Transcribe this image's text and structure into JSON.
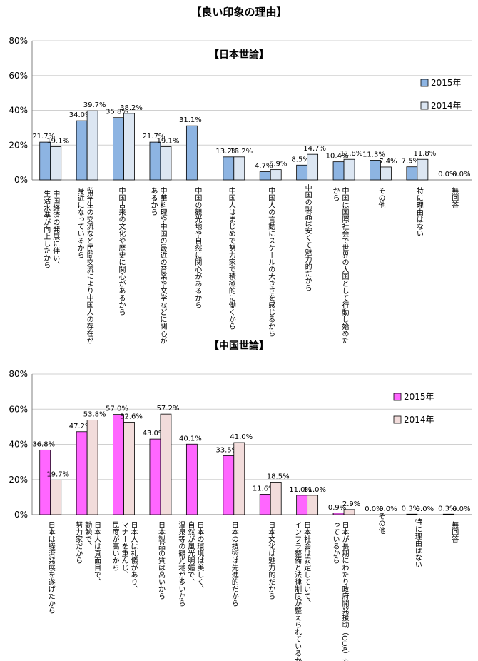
{
  "page_title": "【良い印象の理由】",
  "chart_data": [
    {
      "type": "bar",
      "title": "【日本世論】",
      "ylim": [
        0,
        80
      ],
      "yticks": [
        "0%",
        "20%",
        "40%",
        "60%",
        "80%"
      ],
      "grid": true,
      "legend_position": "right",
      "categories": [
        "中国経済の発展に伴い、生活水準が向上したから",
        "留学生の交流など民間交流により中国人の存在が身近になっているから",
        "中国古来の文化や歴史に関心があるから",
        "中華料理や中国の最近の音楽や文学などに関心があるから",
        "中国の観光地や自然に関心があるから",
        "中国人はまじめで努力家で積極的に働くから",
        "中国人の言動にスケールの大きさを感じるから",
        "中国の製品は安くて魅力的だから",
        "中国は国際社会で世界の大国として行動し始めたから",
        "その他",
        "特に理由はない",
        "無回答"
      ],
      "series": [
        {
          "name": "2015年",
          "color": "#8DB4E2",
          "values": [
            21.7,
            34.0,
            35.8,
            21.7,
            31.1,
            13.2,
            4.7,
            8.5,
            10.4,
            11.3,
            7.5,
            0.0
          ],
          "labels": [
            "21.7%",
            "34.0%",
            "35.8%",
            "21.7%",
            "31.1%",
            "13.2%",
            "4.7%",
            "8.5%",
            "10.4%",
            "11.3%",
            "7.5%",
            "0.0%"
          ]
        },
        {
          "name": "2014年",
          "color": "#DCE6F2",
          "values": [
            19.1,
            39.7,
            38.2,
            19.1,
            null,
            13.2,
            5.9,
            14.7,
            11.8,
            7.4,
            11.8,
            0.0
          ],
          "labels": [
            "19.1%",
            "39.7%",
            "38.2%",
            "19.1%",
            "",
            "13.2%",
            "5.9%",
            "14.7%",
            "11.8%",
            "7.4%",
            "11.8%",
            "0.0%"
          ]
        }
      ]
    },
    {
      "type": "bar",
      "title": "【中国世論】",
      "ylim": [
        0,
        80
      ],
      "yticks": [
        "0%",
        "20%",
        "40%",
        "60%",
        "80%"
      ],
      "grid": true,
      "legend_position": "right",
      "categories": [
        "日本は経済発展を遂げたから",
        "日本人は真面目で、勤勉で、努力家だから",
        "日本人は礼儀があり、マナーを重んじ、民度が高いから",
        "日本製品の質は高いから",
        "日本の環境は美しく、自然が風光明媚で、温泉等の観光地が多いから",
        "日本の技術は先進的だから",
        "日本文化は魅力的だから",
        "日本社会は安定していて、インフラ整備と法律制度が整えられているから",
        "日本が長期にわたり政府開発援助（ODA）を行っているから",
        "その他",
        "特に理由はない",
        "無回答"
      ],
      "series": [
        {
          "name": "2015年",
          "color": "#FF66FF",
          "values": [
            36.8,
            47.2,
            57.0,
            43.0,
            40.1,
            33.5,
            11.6,
            11.0,
            0.9,
            0.0,
            0.3,
            0.3
          ],
          "labels": [
            "36.8%",
            "47.2%",
            "57.0%",
            "43.0%",
            "40.1%",
            "33.5%",
            "11.6%",
            "11.0%",
            "0.9%",
            "0.0%",
            "0.3%",
            "0.3%"
          ]
        },
        {
          "name": "2014年",
          "color": "#F2DCDB",
          "values": [
            19.7,
            53.8,
            52.6,
            57.2,
            null,
            41.0,
            18.5,
            11.0,
            2.9,
            0.0,
            0.0,
            0.0
          ],
          "labels": [
            "19.7%",
            "53.8%",
            "52.6%",
            "57.2%",
            "",
            "41.0%",
            "18.5%",
            "11.0%",
            "2.9%",
            "0.0%",
            "0.0%",
            "0.0%"
          ]
        }
      ]
    }
  ]
}
